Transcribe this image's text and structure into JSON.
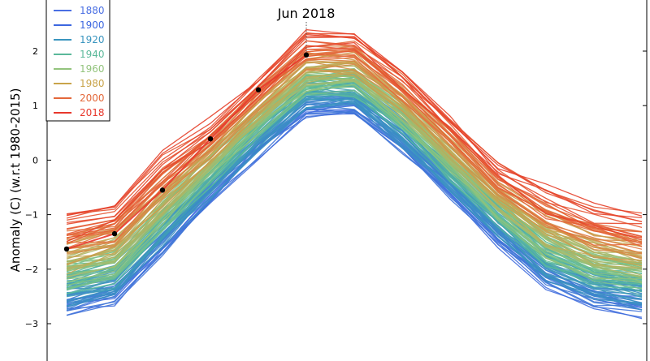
{
  "chart_data": {
    "type": "line",
    "title": "",
    "xlabel": "",
    "ylabel": "Anomaly (C) (w.r.t 1980-2015)",
    "x": [
      1,
      2,
      3,
      4,
      5,
      6,
      7,
      8,
      9,
      10,
      11,
      12,
      13
    ],
    "xlim": [
      1,
      13
    ],
    "ylim": [
      -3.5,
      2.8
    ],
    "yticks": [
      -3,
      -2,
      -1,
      0,
      1,
      2
    ],
    "ytick_labels": [
      "−3",
      "−2",
      "−1",
      "0",
      "1",
      "2"
    ],
    "grid": false,
    "legend_position": "top-left",
    "legend": [
      {
        "label": "1880",
        "color": "#4a6fe3"
      },
      {
        "label": "1900",
        "color": "#3c67e0"
      },
      {
        "label": "1920",
        "color": "#3a95bf"
      },
      {
        "label": "1940",
        "color": "#5bb99a"
      },
      {
        "label": "1960",
        "color": "#93c47d"
      },
      {
        "label": "1980",
        "color": "#c9a44a"
      },
      {
        "label": "2000",
        "color": "#e4683a"
      },
      {
        "label": "2018",
        "color": "#e8382c"
      }
    ],
    "start_year": 1880,
    "end_year": 2018,
    "base_profile": [
      -2.4,
      -2.2,
      -1.3,
      -0.4,
      0.45,
      1.2,
      1.25,
      0.55,
      -0.3,
      -1.15,
      -1.9,
      -2.25,
      -2.4
    ],
    "warming_span": 1.0,
    "highlight_series": {
      "name": "2018",
      "color": "#000000",
      "values": [
        -1.63,
        -1.35,
        -0.55,
        0.39,
        1.29,
        1.93
      ]
    },
    "annotation": {
      "text": "Jun 2018",
      "x": 6,
      "y": 1.93
    }
  }
}
